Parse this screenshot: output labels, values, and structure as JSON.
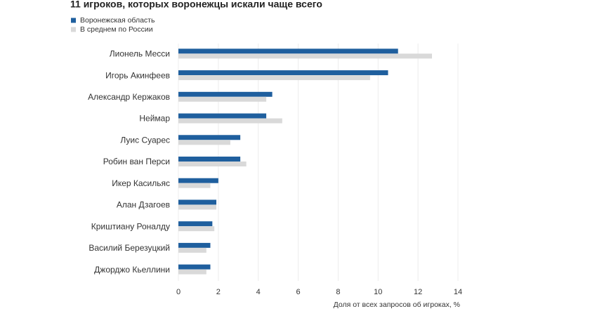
{
  "chart_data": {
    "type": "bar",
    "orientation": "horizontal",
    "title": "11 игроков, которых воронежцы искали чаще всего",
    "x_label": "Доля от всех запросов об игроках, %",
    "categories": [
      "Лионель Месси",
      "Игорь Акинфеев",
      "Александр Кержаков",
      "Неймар",
      "Луис Суарес",
      "Робин ван Перси",
      "Икер Касильяс",
      "Алан Дзагоев",
      "Криштиану Роналду",
      "Василий Березуцкий",
      "Джорджо Кьеллини"
    ],
    "series": [
      {
        "name": "Воронежская область",
        "color": "#1f5f9e",
        "values": [
          11.0,
          10.5,
          4.7,
          4.4,
          3.1,
          3.1,
          2.0,
          1.9,
          1.7,
          1.6,
          1.6
        ]
      },
      {
        "name": "В среднем по России",
        "color": "#d9d9d9",
        "values": [
          12.7,
          9.6,
          4.4,
          5.2,
          2.6,
          3.4,
          1.6,
          1.9,
          1.8,
          1.4,
          1.4
        ]
      }
    ],
    "xlim": [
      0,
      14
    ],
    "xticks": [
      0,
      2,
      4,
      6,
      8,
      10,
      12,
      14
    ],
    "grid": true
  }
}
